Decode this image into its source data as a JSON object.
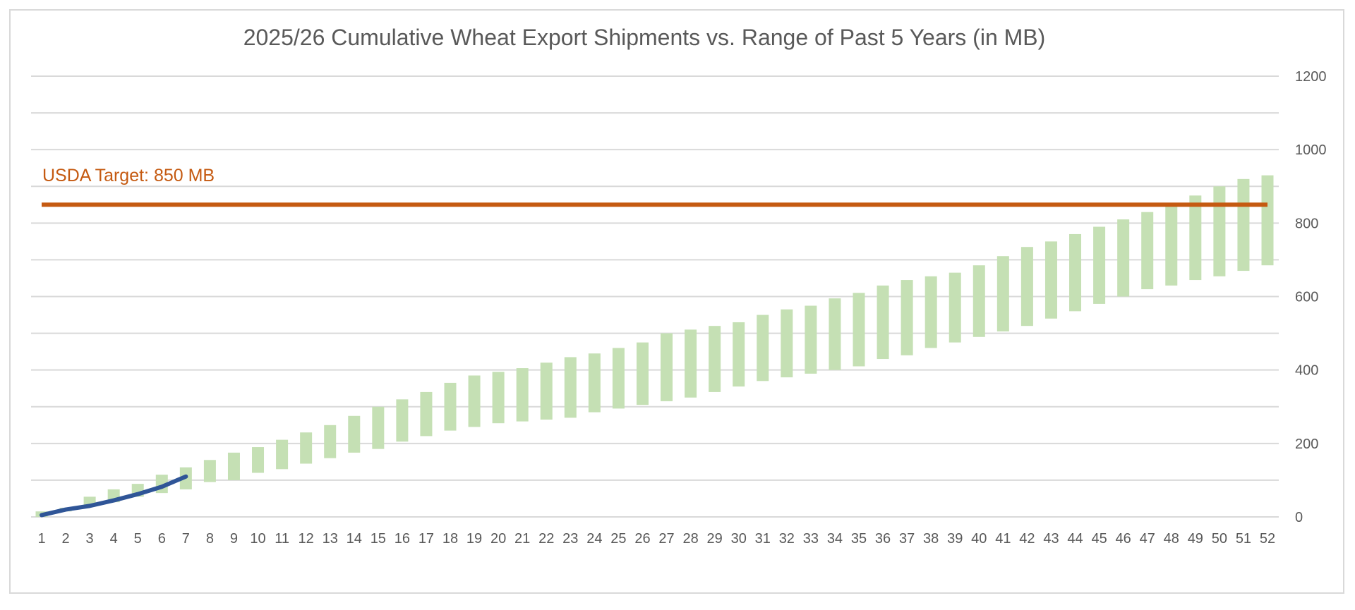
{
  "chart_data": {
    "type": "bar",
    "title": "2025/26 Cumulative Wheat Export Shipments vs. Range of Past 5 Years (in MB)",
    "xlabel": "",
    "ylabel": "",
    "ylim": [
      0,
      1200
    ],
    "y_ticks": [
      0,
      200,
      400,
      600,
      800,
      1000,
      1200
    ],
    "y_axis_side": "right",
    "grid": true,
    "categories": [
      "1",
      "2",
      "3",
      "4",
      "5",
      "6",
      "7",
      "8",
      "9",
      "10",
      "11",
      "12",
      "13",
      "14",
      "15",
      "16",
      "17",
      "18",
      "19",
      "20",
      "21",
      "22",
      "23",
      "24",
      "25",
      "26",
      "27",
      "28",
      "29",
      "30",
      "31",
      "32",
      "33",
      "34",
      "35",
      "36",
      "37",
      "38",
      "39",
      "40",
      "41",
      "42",
      "43",
      "44",
      "45",
      "46",
      "47",
      "48",
      "49",
      "50",
      "51",
      "52"
    ],
    "range_low": [
      0,
      15,
      30,
      40,
      55,
      65,
      75,
      95,
      100,
      120,
      130,
      145,
      160,
      175,
      185,
      205,
      220,
      235,
      245,
      255,
      260,
      265,
      270,
      285,
      295,
      305,
      315,
      325,
      340,
      355,
      370,
      380,
      390,
      400,
      410,
      430,
      440,
      460,
      475,
      490,
      505,
      520,
      540,
      560,
      580,
      600,
      620,
      630,
      645,
      655,
      670,
      685
    ],
    "range_high": [
      15,
      25,
      55,
      75,
      90,
      115,
      135,
      155,
      175,
      190,
      210,
      230,
      250,
      275,
      300,
      320,
      340,
      365,
      385,
      395,
      405,
      420,
      435,
      445,
      460,
      475,
      500,
      510,
      520,
      530,
      550,
      565,
      575,
      595,
      610,
      630,
      645,
      655,
      665,
      685,
      710,
      735,
      750,
      770,
      790,
      810,
      830,
      850,
      875,
      900,
      920,
      930
    ],
    "current_line": [
      5,
      20,
      30,
      45,
      62,
      82,
      110
    ],
    "target_value": 850,
    "target_label": "USDA Target: 850 MB",
    "colors": {
      "range_bars": "#c5e0b4",
      "current_line": "#2f5597",
      "target_line": "#c55a11",
      "grid": "#d9d9d9",
      "text": "#595959"
    }
  }
}
